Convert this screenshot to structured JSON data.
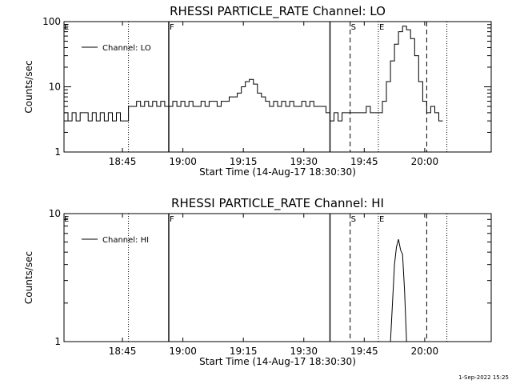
{
  "footer_timestamp": "1-Sep-2022 15:25",
  "chart_data": [
    {
      "type": "line",
      "title": "RHESSI PARTICLE_RATE Channel: LO",
      "xlabel": "Start Time (14-Aug-17 18:30:30)",
      "ylabel": "Counts/sec",
      "yscale": "log",
      "ylim": [
        1,
        100
      ],
      "xlim_minutes_after_1830": [
        0.5,
        106.5
      ],
      "x_unit": "minutes after 18:30",
      "xticks": [
        {
          "label": "18:45",
          "value": 15
        },
        {
          "label": "19:00",
          "value": 30
        },
        {
          "label": "19:15",
          "value": 45
        },
        {
          "label": "19:30",
          "value": 60
        },
        {
          "label": "19:45",
          "value": 75
        },
        {
          "label": "20:00",
          "value": 90
        }
      ],
      "yticks": [
        {
          "label": "1",
          "value": 1
        },
        {
          "label": "10",
          "value": 10
        },
        {
          "label": "100",
          "value": 100
        }
      ],
      "legend": {
        "label": "Channel: LO",
        "placement": "top-left"
      },
      "series": [
        {
          "name": "Channel: LO",
          "x": [
            0.5,
            1.5,
            2.5,
            3.5,
            4.5,
            5.5,
            6.5,
            7.5,
            8.5,
            9.5,
            10.5,
            11.5,
            12.5,
            13.5,
            14.5,
            15.5,
            16.5,
            17.5,
            18.5,
            19.5,
            20.5,
            21.5,
            22.5,
            23.5,
            24.5,
            25.5,
            26.5,
            27.5,
            28.5,
            29.5,
            30.5,
            31.5,
            32.5,
            33.5,
            34.5,
            35.5,
            36.5,
            37.5,
            38.5,
            39.5,
            40.5,
            41.5,
            42.5,
            43.5,
            44.5,
            45.5,
            46.5,
            47.5,
            48.5,
            49.5,
            50.5,
            51.5,
            52.5,
            53.5,
            54.5,
            55.5,
            56.5,
            57.5,
            58.5,
            59.5,
            60.5,
            61.5,
            62.5,
            63.5,
            64.5,
            65.5,
            66.5,
            67.5,
            68.5,
            69.5,
            70.5,
            71.5,
            72.5,
            73.5,
            74.5,
            75.5,
            76.5,
            77.5,
            78.5,
            79.5,
            80.5,
            81.5,
            82.5,
            83.5,
            84.5,
            85.5,
            86.5,
            87.5,
            88.5,
            89.5,
            90.5,
            91.5,
            92.5,
            93.5
          ],
          "y": [
            4,
            3,
            4,
            3,
            4,
            4,
            3,
            4,
            3,
            4,
            3,
            4,
            3,
            4,
            3,
            3,
            5,
            5,
            6,
            5,
            6,
            5,
            6,
            5,
            6,
            5,
            5,
            6,
            5,
            6,
            5,
            6,
            5,
            5,
            6,
            5,
            6,
            6,
            5,
            6,
            6,
            7,
            7,
            8,
            10,
            12,
            13,
            11,
            8,
            7,
            6,
            5,
            6,
            5,
            6,
            5,
            6,
            5,
            5,
            6,
            5,
            6,
            5,
            5,
            5,
            4,
            3,
            4,
            3,
            4,
            4,
            4,
            4,
            4,
            4,
            5,
            4,
            4,
            4,
            6,
            12,
            25,
            45,
            70,
            85,
            75,
            55,
            30,
            12,
            6,
            4,
            5,
            4,
            3
          ]
        }
      ],
      "vlines": [
        {
          "x": 16.5,
          "style": "dotted"
        },
        {
          "x": 26.5,
          "style": "solid"
        },
        {
          "x": 66.5,
          "style": "solid"
        },
        {
          "x": 71.5,
          "style": "dashed"
        },
        {
          "x": 78.5,
          "style": "dotted"
        },
        {
          "x": 90.5,
          "style": "dashed"
        },
        {
          "x": 95.5,
          "style": "dotted"
        }
      ],
      "markers": [
        {
          "label": "E",
          "x": 0.5
        },
        {
          "label": "F",
          "x": 26.5
        },
        {
          "label": "S",
          "x": 71.5
        },
        {
          "label": "E",
          "x": 78.5
        }
      ]
    },
    {
      "type": "line",
      "title": "RHESSI PARTICLE_RATE Channel: HI",
      "xlabel": "Start Time (14-Aug-17 18:30:30)",
      "ylabel": "Counts/sec",
      "yscale": "log",
      "ylim": [
        1,
        10
      ],
      "xlim_minutes_after_1830": [
        0.5,
        106.5
      ],
      "x_unit": "minutes after 18:30",
      "xticks": [
        {
          "label": "18:45",
          "value": 15
        },
        {
          "label": "19:00",
          "value": 30
        },
        {
          "label": "19:15",
          "value": 45
        },
        {
          "label": "19:30",
          "value": 60
        },
        {
          "label": "19:45",
          "value": 75
        },
        {
          "label": "20:00",
          "value": 90
        }
      ],
      "yticks": [
        {
          "label": "1",
          "value": 1
        },
        {
          "label": "10",
          "value": 10
        }
      ],
      "legend": {
        "label": "Channel: HI",
        "placement": "top-left"
      },
      "series": [
        {
          "name": "Channel: HI",
          "x": [
            81.5,
            82.0,
            82.5,
            83.0,
            83.5,
            84.0,
            84.5,
            85.0,
            85.5
          ],
          "y": [
            1,
            2,
            4,
            5.5,
            6.3,
            5.2,
            4.8,
            2.5,
            1
          ]
        }
      ],
      "vlines": [
        {
          "x": 16.5,
          "style": "dotted"
        },
        {
          "x": 26.5,
          "style": "solid"
        },
        {
          "x": 66.5,
          "style": "solid"
        },
        {
          "x": 71.5,
          "style": "dashed"
        },
        {
          "x": 78.5,
          "style": "dotted"
        },
        {
          "x": 90.5,
          "style": "dashed"
        },
        {
          "x": 95.5,
          "style": "dotted"
        }
      ],
      "markers": [
        {
          "label": "E",
          "x": 0.5
        },
        {
          "label": "F",
          "x": 26.5
        },
        {
          "label": "S",
          "x": 71.5
        },
        {
          "label": "E",
          "x": 78.5
        }
      ]
    }
  ]
}
